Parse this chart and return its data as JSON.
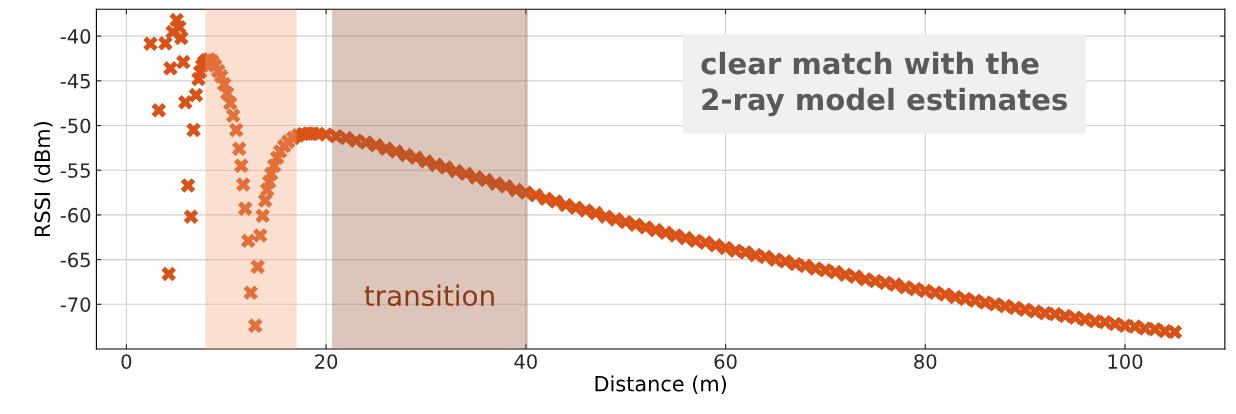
{
  "chart_data": {
    "type": "scatter",
    "xlabel": "Distance (m)",
    "ylabel": "RSSI (dBm)",
    "xlim": [
      -3,
      110
    ],
    "ylim": [
      -75,
      -37
    ],
    "xticks": [
      0,
      20,
      40,
      60,
      80,
      100
    ],
    "yticks": [
      -70,
      -65,
      -60,
      -55,
      -50,
      -45,
      -40
    ],
    "grid": true,
    "marker": "cross",
    "legend": false,
    "bands": [
      {
        "axis": "x",
        "from": 7.9,
        "to": 17.05,
        "color": "#f4a77a"
      },
      {
        "axis": "x",
        "from": 20.6,
        "to": 40.2,
        "color": "#9c5a3c",
        "label": "transition"
      }
    ],
    "annotations": [
      "clear match with the\n2-ray model estimates"
    ],
    "series": [
      {
        "color": "#d95319",
        "x": [
          2.42,
          3.25,
          3.91,
          4.24,
          4.41,
          4.64,
          5.04,
          5.3,
          5.5,
          5.7,
          5.9,
          6.17,
          6.47,
          6.73,
          6.97,
          7.22,
          7.4,
          7.6,
          7.8,
          8.0,
          8.3,
          8.6,
          8.9,
          9.2,
          9.5,
          9.8,
          10.1,
          10.4,
          10.7,
          11.0,
          11.3,
          11.5,
          11.7,
          11.9,
          12.2,
          12.45,
          12.9,
          13.15,
          13.4,
          13.65,
          13.9,
          14.1,
          14.3,
          14.5,
          14.8,
          15.1,
          15.4,
          15.8,
          16.2,
          16.7,
          17.2,
          17.7,
          18.2,
          18.7,
          19.2,
          20,
          21,
          22,
          23,
          24,
          25,
          26,
          27,
          28,
          29,
          30,
          31,
          32,
          33,
          34,
          35,
          36,
          37,
          38,
          39,
          40,
          41,
          42,
          43,
          44,
          45,
          46,
          47,
          48,
          49,
          50,
          51,
          52,
          53,
          54,
          55,
          56,
          57,
          58,
          59,
          60,
          61,
          62,
          63,
          64,
          65,
          66,
          67,
          68,
          69,
          70,
          71,
          72,
          73,
          74,
          75,
          76,
          77,
          78,
          79,
          80,
          81,
          82,
          83,
          84,
          85,
          86,
          87,
          88,
          89,
          90,
          91,
          92,
          93,
          94,
          95,
          96,
          97,
          98,
          99,
          100,
          101,
          102,
          103,
          104,
          105
        ],
        "values": [
          -40.85,
          -48.3,
          -40.8,
          -66.6,
          -43.6,
          -39.55,
          -38.2,
          -39.0,
          -40.2,
          -42.9,
          -47.4,
          -56.7,
          -60.2,
          -50.5,
          -46.6,
          -44.8,
          -44.0,
          -43.3,
          -42.9,
          -42.7,
          -42.6,
          -42.8,
          -43.3,
          -43.9,
          -44.5,
          -45.4,
          -46.4,
          -47.5,
          -48.9,
          -50.5,
          -52.6,
          -54.5,
          -56.6,
          -59.3,
          -62.9,
          -68.7,
          -72.4,
          -65.8,
          -62.3,
          -60.1,
          -58.4,
          -57.2,
          -56.3,
          -55.4,
          -54.5,
          -53.6,
          -52.9,
          -52.3,
          -51.8,
          -51.4,
          -51.1,
          -50.95,
          -50.9,
          -50.9,
          -50.95,
          -51.0,
          -51.2,
          -51.4,
          -51.7,
          -51.9,
          -52.2,
          -52.6,
          -52.9,
          -53.3,
          -53.6,
          -54.0,
          -54.4,
          -54.7,
          -55.1,
          -55.4,
          -55.8,
          -56.1,
          -56.5,
          -56.8,
          -57.2,
          -57.5,
          -57.8,
          -58.2,
          -58.5,
          -58.9,
          -59.2,
          -59.5,
          -59.8,
          -60.2,
          -60.5,
          -60.8,
          -61.1,
          -61.4,
          -61.7,
          -62.0,
          -62.3,
          -62.6,
          -62.9,
          -63.1,
          -63.4,
          -63.7,
          -64.0,
          -64.2,
          -64.5,
          -64.7,
          -65.0,
          -65.2,
          -65.5,
          -65.7,
          -66.0,
          -66.2,
          -66.4,
          -66.7,
          -66.9,
          -67.2,
          -67.4,
          -67.6,
          -67.8,
          -68.1,
          -68.3,
          -68.5,
          -68.7,
          -68.9,
          -69.2,
          -69.4,
          -69.6,
          -69.8,
          -70.0,
          -70.2,
          -70.4,
          -70.6,
          -70.8,
          -71.0,
          -71.1,
          -71.3,
          -71.5,
          -71.7,
          -71.9,
          -72.0,
          -72.2,
          -72.4,
          -72.5,
          -72.7,
          -72.8,
          -73.0,
          -73.1
        ]
      }
    ]
  }
}
